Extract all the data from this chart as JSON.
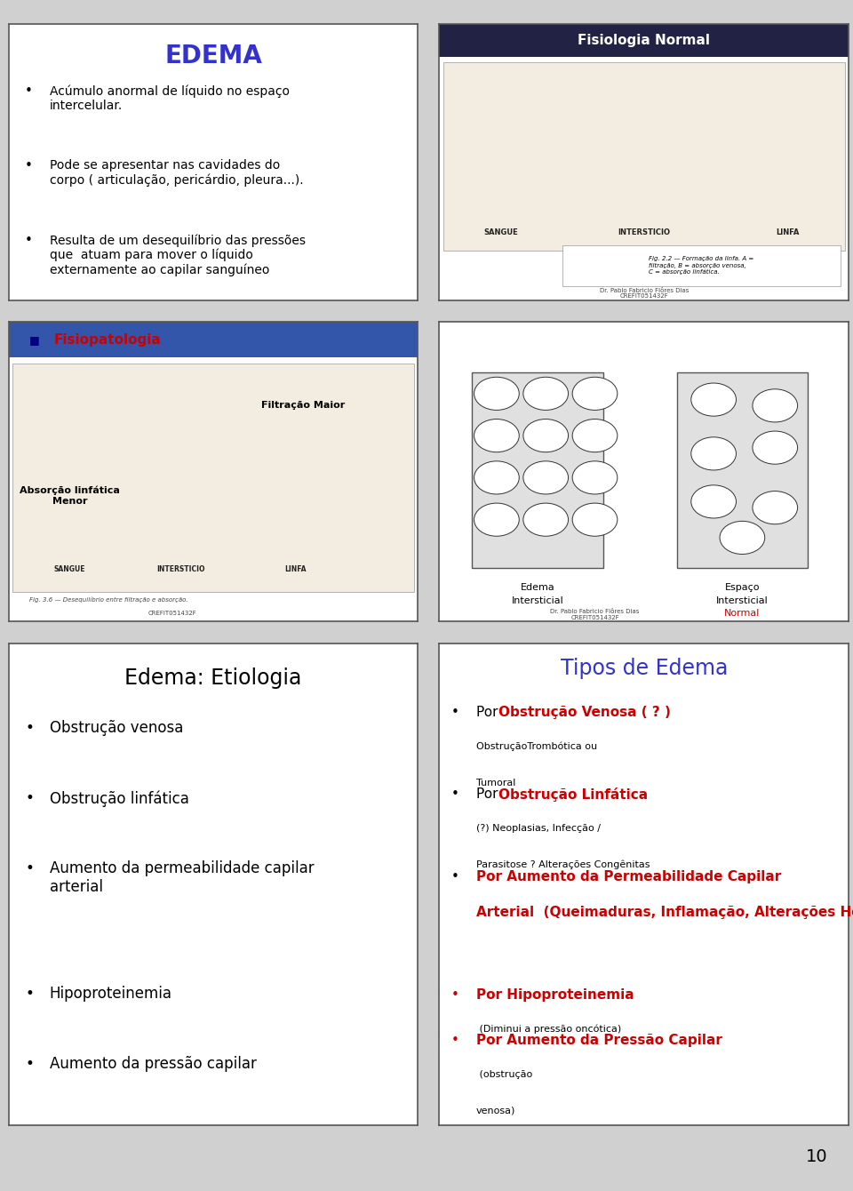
{
  "slide_bg": "#d0d0d0",
  "panel_bg": "#ffffff",
  "border_color": "#555555",
  "page_number": "10",
  "panel1_title": "EDEMA",
  "panel1_title_color": "#3333cc",
  "panel1_bullets": [
    "Acúmulo anormal de líquido no espaço\nintercelular.",
    "Pode se apresentar nas cavidades do\ncorpo ( articulação, pericárdio, pleura...).",
    "Resulta de um desequilíbrio das pressões\nque  atuam para mover o líquido\nexternamente ao capilar sanguíneo"
  ],
  "panel2_title": "Fisiologia Normal",
  "panel2_title_color": "#ffffff",
  "panel2_title_bg": "#000000",
  "panel2_image_caption": "Fig. 2.2 — Formação da linfa. A =\nfiltração, B = absorção venosa,\nC = absorção linfática.",
  "panel2_credit1": "Dr. Pablo Fabricio Flôres Dias",
  "panel2_credit2": "CREFIT051432F",
  "panel3_title_text": "Fisiopatologia",
  "panel3_title_color": "#cc0000",
  "panel3_title_bullet_color": "#000080",
  "panel3_label1": "Filtração Maior",
  "panel3_label2": "Absorção linfática\nMenor",
  "panel3_credit1": "Fig. 3.6 — Desequilíbrio entre filtração e absorção.",
  "panel3_credit2": "CREFIT051432F",
  "panel4_label_left1": "Edema",
  "panel4_label_left2": "Intersticial",
  "panel4_label_right1": "Espaço",
  "panel4_label_right2": "Intersticial",
  "panel4_label_right3": "Normal",
  "panel4_credit1": "Dr. Pablo Fabricio Flôres Dias",
  "panel4_credit2": "CREFIT051432F",
  "panel5_title": "Edema: Etiologia",
  "panel5_title_color": "#000000",
  "panel5_bullets": [
    "Obstrução venosa",
    "Obstrução linfática",
    "Aumento da permeabilidade capilar\narterial",
    "Hipoproteinemia",
    "Aumento da pressão capilar"
  ],
  "panel6_title": "Tipos de Edema",
  "panel6_title_color": "#3333cc",
  "panel6_items": [
    {
      "prefix": "Por ",
      "highlight": "Obstrução Venosa",
      "suffix_large": " ( ? ) ",
      "suffix_small": "ObstruçãoTrombótica ou\nTumoral",
      "highlight_color": "#cc0000",
      "prefix_color": "#000000",
      "bullet_color": "#000000",
      "nlines": 2
    },
    {
      "prefix": "Por ",
      "highlight": "Obstrução Linfática",
      "suffix_large": " ",
      "suffix_small": "(?) Neoplasias, Infecção /\nParasitose ? Alterações Congênitas",
      "highlight_color": "#cc0000",
      "prefix_color": "#000000",
      "bullet_color": "#000000",
      "nlines": 2
    },
    {
      "prefix": "Por ",
      "highlight": "Aumento da Permeabilidade Capilar\nArterial",
      "suffix_large": "",
      "suffix_small": " (Queimaduras, Inflamação, Alterações Hormonais)",
      "highlight_color": "#cc0000",
      "prefix_color": "#cc0000",
      "bullet_color": "#000000",
      "nlines": 3
    },
    {
      "prefix": "Por ",
      "highlight": "Hipoproteinemia",
      "suffix_large": "",
      "suffix_small": " (Diminui a pressão oncótica)",
      "highlight_color": "#cc0000",
      "prefix_color": "#cc0000",
      "bullet_color": "#cc0000",
      "nlines": 1
    },
    {
      "prefix": "Por ",
      "highlight": "Aumento da Pressão Capilar",
      "suffix_large": "",
      "suffix_small": " (obstrução\nvenosa)",
      "highlight_color": "#cc0000",
      "prefix_color": "#cc0000",
      "bullet_color": "#cc0000",
      "nlines": 2
    }
  ]
}
